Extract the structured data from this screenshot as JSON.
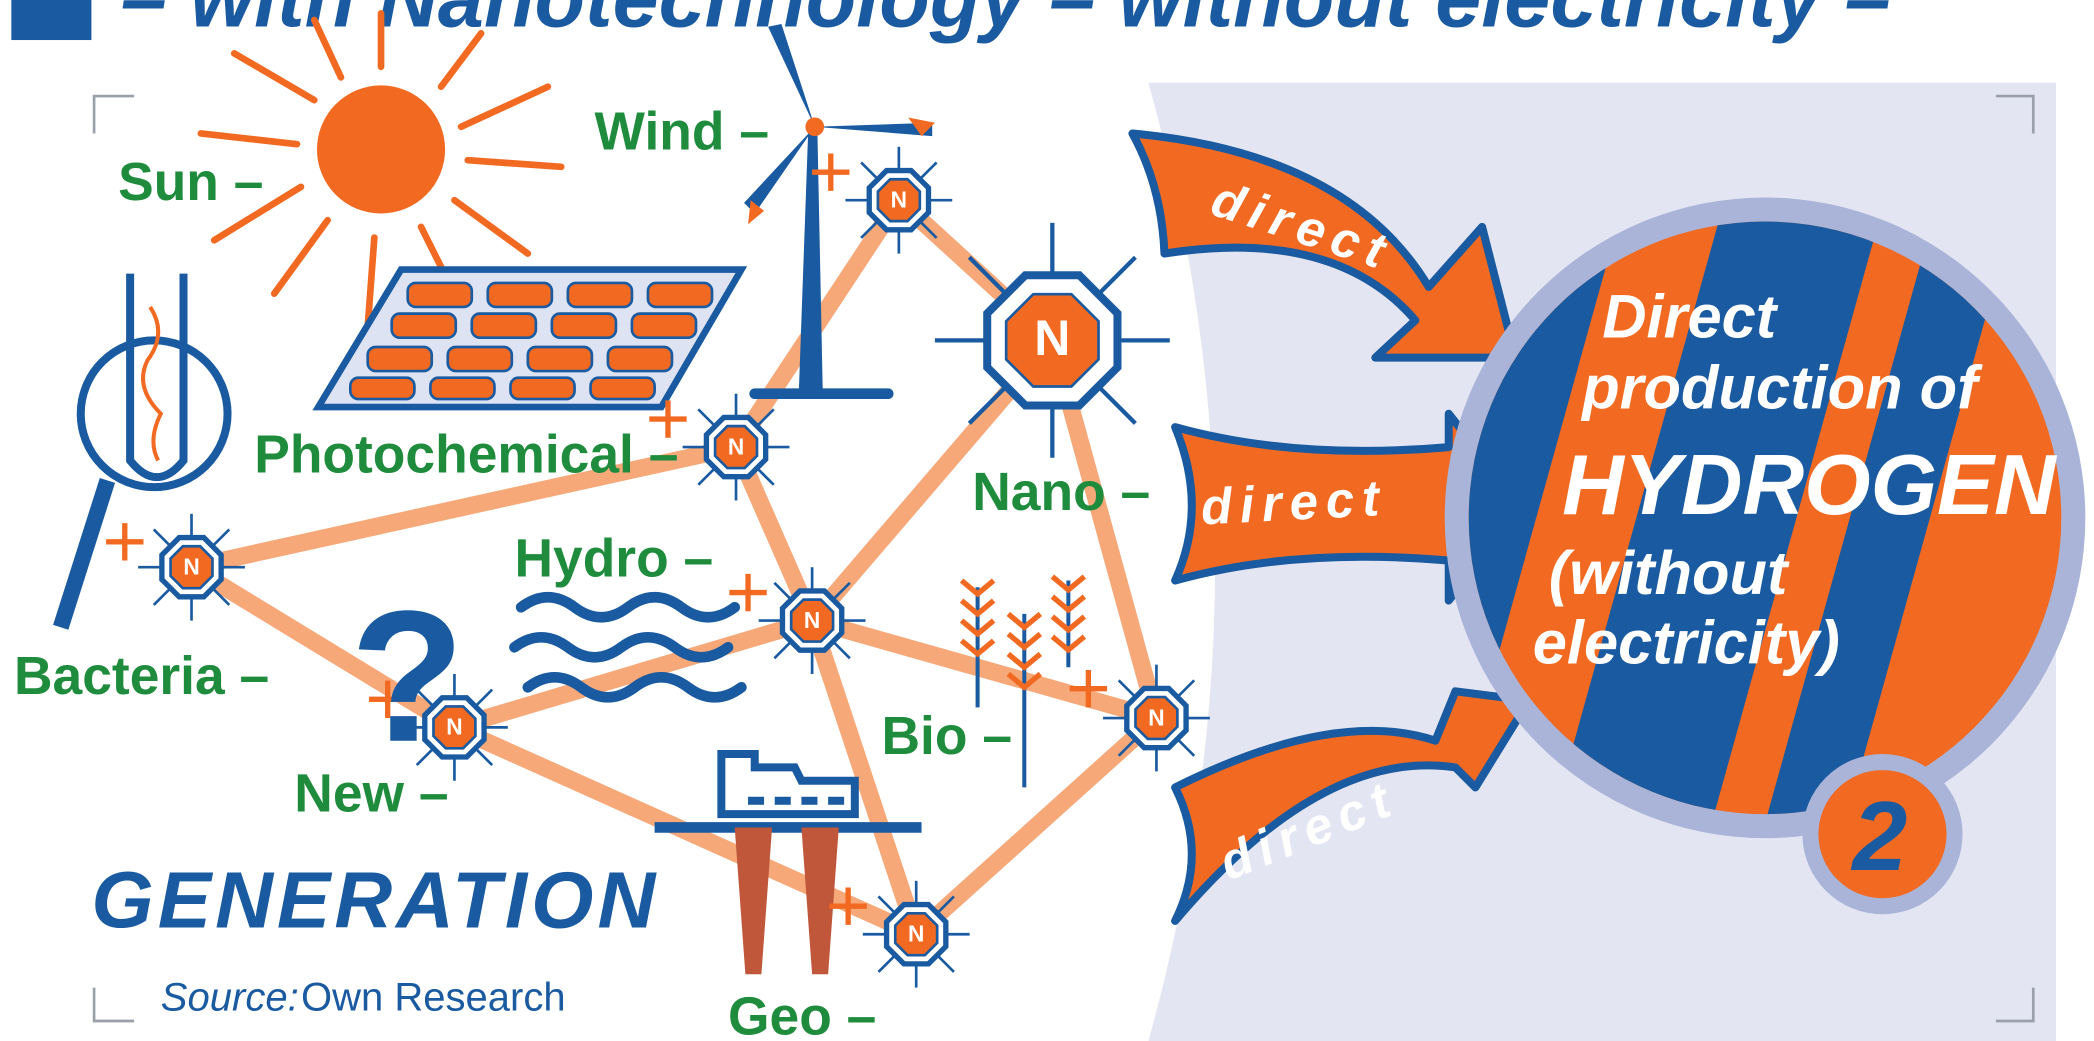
{
  "header": {
    "title": "– with Nanotechnology – without electricity –"
  },
  "nodes": [
    {
      "label": "Sun –"
    },
    {
      "label": "Wind –",
      "badge": "N"
    },
    {
      "label": "Photochemical –",
      "badge": "N"
    },
    {
      "label": "Bacteria –",
      "badge": "N"
    },
    {
      "label": "Hydro –",
      "badge": "N"
    },
    {
      "label": "New –",
      "badge": "N",
      "icon": "?"
    },
    {
      "label": "Nano –",
      "badge": "N"
    },
    {
      "label": "Bio –",
      "badge": "N"
    },
    {
      "label": "Geo –",
      "badge": "N"
    }
  ],
  "arrows": [
    "direct",
    "direct",
    "direct"
  ],
  "result": {
    "lines": [
      "Direct",
      "production of",
      "HYDROGEN",
      "(without",
      "electricity)"
    ],
    "number": "2"
  },
  "footer": {
    "heading": "GENERATION",
    "source_label": "Source:",
    "source": "Own Research"
  }
}
